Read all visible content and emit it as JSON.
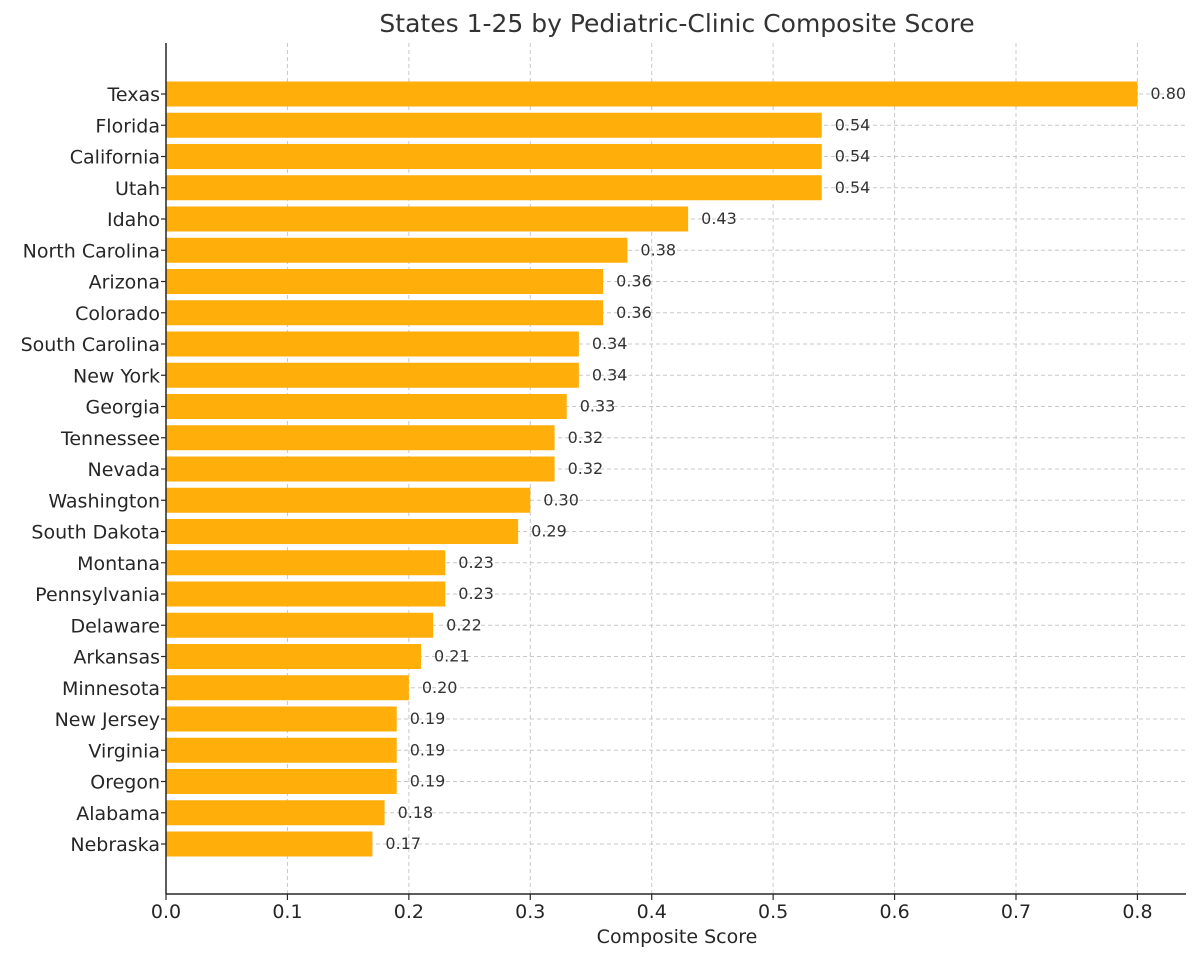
{
  "chart_data": {
    "type": "bar",
    "orientation": "horizontal",
    "title": "States 1-25 by Pediatric-Clinic Composite Score",
    "xlabel": "Composite Score",
    "ylabel": "",
    "xlim": [
      0,
      0.84
    ],
    "xticks": [
      0.0,
      0.1,
      0.2,
      0.3,
      0.4,
      0.5,
      0.6,
      0.7,
      0.8
    ],
    "xtick_labels": [
      "0.0",
      "0.1",
      "0.2",
      "0.3",
      "0.4",
      "0.5",
      "0.6",
      "0.7",
      "0.8"
    ],
    "grid": true,
    "bar_color": "#FFAE0A",
    "categories": [
      "Texas",
      "Florida",
      "California",
      "Utah",
      "Idaho",
      "North Carolina",
      "Arizona",
      "Colorado",
      "South Carolina",
      "New York",
      "Georgia",
      "Tennessee",
      "Nevada",
      "Washington",
      "South Dakota",
      "Montana",
      "Pennsylvania",
      "Delaware",
      "Arkansas",
      "Minnesota",
      "New Jersey",
      "Virginia",
      "Oregon",
      "Alabama",
      "Nebraska"
    ],
    "values": [
      0.8,
      0.54,
      0.54,
      0.54,
      0.43,
      0.38,
      0.36,
      0.36,
      0.34,
      0.34,
      0.33,
      0.32,
      0.32,
      0.3,
      0.29,
      0.23,
      0.23,
      0.22,
      0.21,
      0.2,
      0.19,
      0.19,
      0.19,
      0.18,
      0.17
    ],
    "value_labels": [
      "0.80",
      "0.54",
      "0.54",
      "0.54",
      "0.43",
      "0.38",
      "0.36",
      "0.36",
      "0.34",
      "0.34",
      "0.33",
      "0.32",
      "0.32",
      "0.30",
      "0.29",
      "0.23",
      "0.23",
      "0.22",
      "0.21",
      "0.20",
      "0.19",
      "0.19",
      "0.19",
      "0.18",
      "0.17"
    ]
  }
}
